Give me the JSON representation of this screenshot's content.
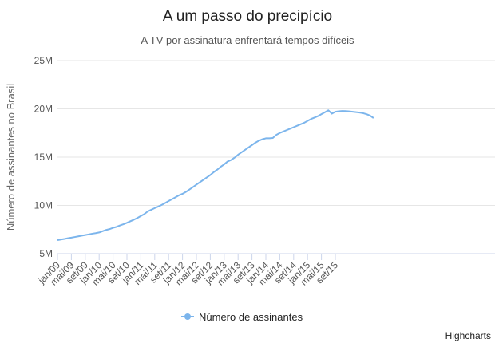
{
  "chart_data": {
    "type": "line",
    "title": "A um passo do precipício",
    "subtitle": "A TV por assinatura enfrentará tempos difíceis",
    "ylabel": "Número de assinantes no Brasil",
    "xlabel": "",
    "ylim": [
      5000000,
      25000000
    ],
    "y_ticks": [
      5000000,
      10000000,
      15000000,
      20000000,
      25000000
    ],
    "y_tick_labels": [
      "5M",
      "10M",
      "15M",
      "20M",
      "25M"
    ],
    "x_tick_labels": [
      "jan/09",
      "mai/09",
      "set/09",
      "jan/10",
      "mai/10",
      "set/10",
      "jan/11",
      "mai/11",
      "set/11",
      "jan/12",
      "mai/12",
      "set/12",
      "jan/13",
      "mai/13",
      "set/13",
      "jan/14",
      "mai/14",
      "set/14",
      "jan/15",
      "mai/15",
      "set/15"
    ],
    "x_start": "jan/09",
    "x_interval_months": 1,
    "grid": true,
    "legend_position": "bottom-center",
    "colors": {
      "series": "#7cb5ec",
      "grid": "#e6e6e6"
    },
    "series": [
      {
        "name": "Número de assinantes",
        "values": [
          6.4,
          6.47,
          6.53,
          6.6,
          6.66,
          6.73,
          6.8,
          6.87,
          6.93,
          7.0,
          7.07,
          7.13,
          7.2,
          7.33,
          7.46,
          7.55,
          7.68,
          7.78,
          7.93,
          8.05,
          8.2,
          8.36,
          8.52,
          8.7,
          8.9,
          9.1,
          9.38,
          9.55,
          9.72,
          9.88,
          10.05,
          10.25,
          10.45,
          10.65,
          10.85,
          11.05,
          11.2,
          11.4,
          11.65,
          11.9,
          12.15,
          12.4,
          12.65,
          12.9,
          13.15,
          13.45,
          13.7,
          14.0,
          14.25,
          14.55,
          14.7,
          14.95,
          15.25,
          15.5,
          15.75,
          16.0,
          16.25,
          16.5,
          16.7,
          16.85,
          16.95,
          16.95,
          16.98,
          17.3,
          17.5,
          17.65,
          17.8,
          17.95,
          18.1,
          18.25,
          18.4,
          18.55,
          18.75,
          18.95,
          19.1,
          19.25,
          19.45,
          19.65,
          19.85,
          19.5,
          19.7,
          19.75,
          19.78,
          19.77,
          19.74,
          19.7,
          19.66,
          19.62,
          19.55,
          19.45,
          19.3,
          19.05
        ]
      }
    ]
  },
  "credits": "Highcharts"
}
